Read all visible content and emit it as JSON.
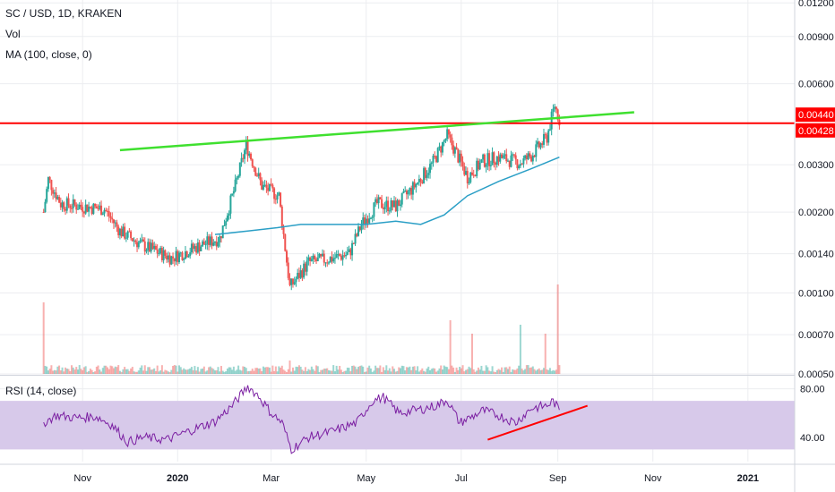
{
  "header": {
    "symbol_line": "SC / USD, 1D, KRAKEN",
    "vol_label": "Vol",
    "ma_label": "MA (100, close, 0)",
    "rsi_label": "RSI (14, close)"
  },
  "colors": {
    "up": "#26a69a",
    "down": "#ef5350",
    "ma": "#2b9fc6",
    "rsi": "#7b1fa2",
    "rsi_band": "#d7c9ea",
    "trend_green": "#3fe02f",
    "trend_red": "#ff0000",
    "tag_red": "#ff0000",
    "grid": "#ecedf0"
  },
  "chart_data": {
    "type": "candlestick",
    "scale": "log",
    "price_axis_ticks": [
      "0.01200",
      "0.00900",
      "0.00600",
      "0.00300",
      "0.00200",
      "0.00140",
      "0.00100",
      "0.00070",
      "0.00050"
    ],
    "price_tags": [
      "0.00440",
      "0.00428"
    ],
    "rsi_axis_ticks": [
      "80.00",
      "40.00"
    ],
    "rsi_band": [
      30,
      70
    ],
    "x_ticks": [
      "Nov",
      "2020",
      "Mar",
      "May",
      "Jul",
      "Sep",
      "Nov",
      "2021"
    ],
    "x_range": [
      "2019-09-09",
      "2021-01-31"
    ],
    "price_range": [
      0.0005,
      0.0123
    ],
    "rsi_range": [
      20,
      90
    ],
    "price_path": [
      [
        "2019-10-07",
        0.002
      ],
      [
        "2019-10-10",
        0.00265
      ],
      [
        "2019-10-18",
        0.00215
      ],
      [
        "2019-11-01",
        0.0021
      ],
      [
        "2019-11-15",
        0.00205
      ],
      [
        "2019-11-25",
        0.0017
      ],
      [
        "2019-12-10",
        0.0015
      ],
      [
        "2019-12-28",
        0.00135
      ],
      [
        "2020-01-15",
        0.0015
      ],
      [
        "2020-01-28",
        0.0016
      ],
      [
        "2020-02-07",
        0.0025
      ],
      [
        "2020-02-14",
        0.00355
      ],
      [
        "2020-02-24",
        0.0025
      ],
      [
        "2020-03-06",
        0.0023
      ],
      [
        "2020-03-13",
        0.00105
      ],
      [
        "2020-03-25",
        0.0013
      ],
      [
        "2020-04-10",
        0.00135
      ],
      [
        "2020-04-20",
        0.0014
      ],
      [
        "2020-04-28",
        0.0018
      ],
      [
        "2020-05-08",
        0.00215
      ],
      [
        "2020-05-20",
        0.0021
      ],
      [
        "2020-06-01",
        0.0025
      ],
      [
        "2020-06-12",
        0.003
      ],
      [
        "2020-06-22",
        0.00385
      ],
      [
        "2020-06-28",
        0.0033
      ],
      [
        "2020-07-05",
        0.0027
      ],
      [
        "2020-07-15",
        0.0031
      ],
      [
        "2020-07-25",
        0.0032
      ],
      [
        "2020-08-08",
        0.00305
      ],
      [
        "2020-08-15",
        0.00325
      ],
      [
        "2020-08-25",
        0.0038
      ],
      [
        "2020-08-30",
        0.005
      ],
      [
        "2020-09-02",
        0.0044
      ]
    ],
    "ma_path": [
      [
        "2020-01-25",
        0.00165
      ],
      [
        "2020-02-15",
        0.0017
      ],
      [
        "2020-03-05",
        0.00175
      ],
      [
        "2020-03-20",
        0.0018
      ],
      [
        "2020-04-10",
        0.0018
      ],
      [
        "2020-05-01",
        0.0018
      ],
      [
        "2020-05-20",
        0.00185
      ],
      [
        "2020-06-05",
        0.0018
      ],
      [
        "2020-06-20",
        0.00195
      ],
      [
        "2020-07-05",
        0.0023
      ],
      [
        "2020-07-25",
        0.0026
      ],
      [
        "2020-08-15",
        0.0029
      ],
      [
        "2020-09-02",
        0.0032
      ]
    ],
    "rsi_path": [
      [
        "2019-10-07",
        52
      ],
      [
        "2019-10-15",
        58
      ],
      [
        "2019-10-28",
        56
      ],
      [
        "2019-11-10",
        57
      ],
      [
        "2019-11-20",
        50
      ],
      [
        "2019-11-30",
        36
      ],
      [
        "2019-12-10",
        40
      ],
      [
        "2019-12-25",
        38
      ],
      [
        "2020-01-10",
        46
      ],
      [
        "2020-01-25",
        53
      ],
      [
        "2020-02-05",
        66
      ],
      [
        "2020-02-15",
        82
      ],
      [
        "2020-02-22",
        74
      ],
      [
        "2020-03-01",
        60
      ],
      [
        "2020-03-08",
        52
      ],
      [
        "2020-03-14",
        30
      ],
      [
        "2020-03-25",
        40
      ],
      [
        "2020-04-10",
        45
      ],
      [
        "2020-04-25",
        52
      ],
      [
        "2020-05-05",
        70
      ],
      [
        "2020-05-12",
        73
      ],
      [
        "2020-05-22",
        60
      ],
      [
        "2020-06-05",
        63
      ],
      [
        "2020-06-15",
        66
      ],
      [
        "2020-06-22",
        71
      ],
      [
        "2020-06-30",
        52
      ],
      [
        "2020-07-08",
        57
      ],
      [
        "2020-07-15",
        62
      ],
      [
        "2020-07-25",
        58
      ],
      [
        "2020-08-05",
        52
      ],
      [
        "2020-08-15",
        64
      ],
      [
        "2020-08-25",
        66
      ],
      [
        "2020-08-29",
        70
      ],
      [
        "2020-09-02",
        62
      ]
    ],
    "volume_spikes": [
      [
        "2019-10-07",
        0.8
      ],
      [
        "2020-03-13",
        0.15
      ],
      [
        "2020-06-24",
        0.6
      ],
      [
        "2020-07-08",
        0.45
      ],
      [
        "2020-08-08",
        0.55
      ],
      [
        "2020-08-24",
        0.45
      ],
      [
        "2020-09-01",
        1.0
      ]
    ],
    "resistance_line": {
      "value": 0.00428
    },
    "green_trendline": [
      [
        "2019-11-25",
        0.0034
      ],
      [
        "2020-10-20",
        0.0047
      ]
    ],
    "rsi_trendline": [
      [
        "2020-07-18",
        38
      ],
      [
        "2020-09-20",
        66
      ]
    ]
  }
}
